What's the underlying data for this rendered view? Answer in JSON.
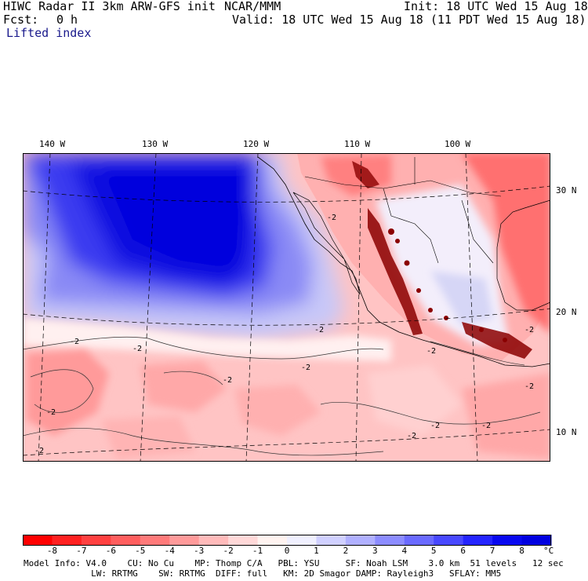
{
  "header": {
    "title": "HIWC Radar II 3km ARW-GFS init",
    "org": "NCAR/MMM",
    "init": "Init: 18 UTC Wed 15 Aug 18",
    "fcst_label": "Fcst:",
    "fcst_value": "0 h",
    "valid": "Valid: 18 UTC Wed 15 Aug 18 (11 PDT Wed 15 Aug 18)",
    "field": "Lifted index"
  },
  "longitude_labels": [
    "140 W",
    "130 W",
    "120 W",
    "110 W",
    "100 W"
  ],
  "latitude_labels": [
    "30 N",
    "20 N",
    "10 N"
  ],
  "contour_labels": [
    "-2",
    "-2",
    "-2",
    "-2",
    "-2",
    "-2",
    "-2",
    "-2",
    "-2",
    "-2",
    "-2",
    "-2",
    "-2",
    "-2"
  ],
  "colorbar": {
    "labels": [
      "-8",
      "-7",
      "-6",
      "-5",
      "-4",
      "-3",
      "-2",
      "-1",
      "0",
      "1",
      "2",
      "3",
      "4",
      "5",
      "6",
      "7",
      "8"
    ],
    "unit": "°C",
    "colors": [
      "#ff0000",
      "#ff2020",
      "#ff4040",
      "#ff5e5e",
      "#ff7a7a",
      "#ff9a9a",
      "#ffbaba",
      "#ffd8d8",
      "#fff3f0",
      "#f0f0ff",
      "#d0d0ff",
      "#b0b0ff",
      "#8c8cff",
      "#6a6aff",
      "#4848ff",
      "#2424ff",
      "#0808f0",
      "#0000e0"
    ]
  },
  "footer": {
    "line1": "Model Info: V4.0    CU: No Cu    MP: Thomp C/A   PBL: YSU     SF: Noah LSM    3.0 km  51 levels   12 sec",
    "line2": "             LW: RRTMG    SW: RRTMG  DIFF: full   KM: 2D Smagor DAMP: Rayleigh3   SFLAY: MM5"
  }
}
